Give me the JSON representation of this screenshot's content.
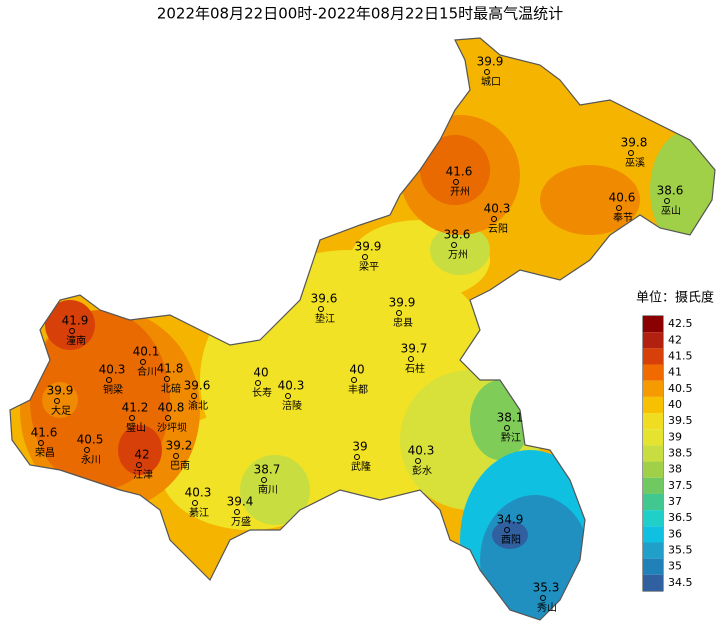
{
  "title": "2022年08月22日00时-2022年08月22日15时最高气温统计",
  "stations": [
    {
      "value": 39.9,
      "name": "城口"
    },
    {
      "value": 39.8,
      "name": "巫溪"
    },
    {
      "value": 41.6,
      "name": "开州"
    },
    {
      "value": 40.6,
      "name": "奉节"
    },
    {
      "value": 38.6,
      "name": "巫山"
    },
    {
      "value": 40.3,
      "name": "云阳"
    },
    {
      "value": 38.6,
      "name": "万州"
    },
    {
      "value": 39.9,
      "name": "梁平"
    },
    {
      "value": 39.6,
      "name": "垫江"
    },
    {
      "value": 39.9,
      "name": "忠县"
    },
    {
      "value": 41.9,
      "name": "潼南"
    },
    {
      "value": 39.7,
      "name": "石柱"
    },
    {
      "value": 40.1,
      "name": "合川"
    },
    {
      "value": 40.3,
      "name": "铜梁"
    },
    {
      "value": 41.8,
      "name": "北碚"
    },
    {
      "value": 40,
      "name": "长寿"
    },
    {
      "value": 40,
      "name": "丰都"
    },
    {
      "value": 39.6,
      "name": "渝北"
    },
    {
      "value": 40.3,
      "name": "涪陵"
    },
    {
      "value": 39.9,
      "name": "大足"
    },
    {
      "value": 41.2,
      "name": "璧山"
    },
    {
      "value": 40.8,
      "name": "沙坪坝"
    },
    {
      "value": 41.6,
      "name": "荣昌"
    },
    {
      "value": 40.5,
      "name": "永川"
    },
    {
      "value": 39.2,
      "name": "巴南"
    },
    {
      "value": 42,
      "name": "江津"
    },
    {
      "value": 39,
      "name": "武隆"
    },
    {
      "value": 40.3,
      "name": "彭水"
    },
    {
      "value": 38.7,
      "name": "南川"
    },
    {
      "value": 38.1,
      "name": "黔江"
    },
    {
      "value": 40.3,
      "name": "綦江"
    },
    {
      "value": 39.4,
      "name": "万盛"
    },
    {
      "value": 34.9,
      "name": "酉阳"
    },
    {
      "value": 35.3,
      "name": "秀山"
    }
  ],
  "legend": {
    "title": "单位：摄氏度",
    "levels": [
      {
        "value": 42.5,
        "color": "#8b0000"
      },
      {
        "value": 42,
        "color": "#b22010"
      },
      {
        "value": 41.5,
        "color": "#d8400a"
      },
      {
        "value": 41,
        "color": "#f06a00"
      },
      {
        "value": 40.5,
        "color": "#f59a00"
      },
      {
        "value": 40,
        "color": "#f7c000"
      },
      {
        "value": 39.5,
        "color": "#f0dc20"
      },
      {
        "value": 39,
        "color": "#e4e430"
      },
      {
        "value": 38.5,
        "color": "#c8de40"
      },
      {
        "value": 38,
        "color": "#a0d048"
      },
      {
        "value": 37.5,
        "color": "#70c860"
      },
      {
        "value": 37,
        "color": "#40c890"
      },
      {
        "value": 36.5,
        "color": "#20d0c8"
      },
      {
        "value": 36,
        "color": "#10c0e0"
      },
      {
        "value": 35.5,
        "color": "#20a0c8"
      },
      {
        "value": 35,
        "color": "#2080b8"
      },
      {
        "value": 34.5,
        "color": "#3060a0"
      }
    ]
  }
}
